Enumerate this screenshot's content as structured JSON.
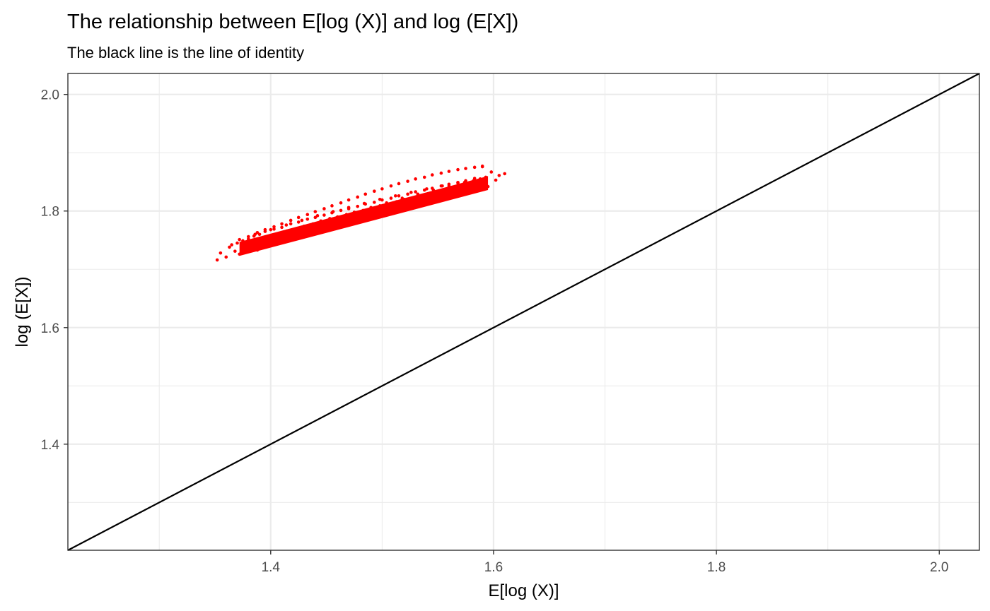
{
  "chart_data": {
    "type": "scatter",
    "title": "The relationship between E[log (X)] and log (E[X])",
    "subtitle": "The black line is the line of identity",
    "xlabel": "E[log (X)]",
    "ylabel": "log (E[X])",
    "xlim": [
      1.218,
      2.036
    ],
    "ylim": [
      1.218,
      2.036
    ],
    "x_ticks": [
      1.4,
      1.6,
      1.8,
      2.0
    ],
    "x_tick_labels": [
      "1.4",
      "1.6",
      "1.8",
      "2.0"
    ],
    "y_ticks": [
      1.4,
      1.6,
      1.8,
      2.0
    ],
    "y_tick_labels": [
      "1.4",
      "1.6",
      "1.8",
      "2.0"
    ],
    "grid": true,
    "legend": "none",
    "series": [
      {
        "kind": "points",
        "color": "#ff0000",
        "x": [
          1.352,
          1.355,
          1.36,
          1.363,
          1.368,
          1.37,
          1.372,
          1.375,
          1.378,
          1.38,
          1.382,
          1.385,
          1.388,
          1.39,
          1.393,
          1.395,
          1.398,
          1.4,
          1.403,
          1.405,
          1.408,
          1.41,
          1.413,
          1.415,
          1.418,
          1.42,
          1.423,
          1.425,
          1.428,
          1.43,
          1.433,
          1.435,
          1.438,
          1.44,
          1.443,
          1.445,
          1.448,
          1.45,
          1.453,
          1.455,
          1.458,
          1.46,
          1.463,
          1.465,
          1.468,
          1.47,
          1.473,
          1.475,
          1.478,
          1.48,
          1.483,
          1.485,
          1.488,
          1.49,
          1.493,
          1.495,
          1.498,
          1.5,
          1.503,
          1.505,
          1.508,
          1.51,
          1.513,
          1.515,
          1.518,
          1.52,
          1.523,
          1.525,
          1.528,
          1.53,
          1.533,
          1.535,
          1.538,
          1.54,
          1.543,
          1.545,
          1.548,
          1.55,
          1.553,
          1.555,
          1.558,
          1.56,
          1.563,
          1.565,
          1.568,
          1.57,
          1.573,
          1.575,
          1.578,
          1.58,
          1.583,
          1.585,
          1.588,
          1.59,
          1.593,
          1.595,
          1.598,
          1.602,
          1.605,
          1.61,
          1.365,
          1.372,
          1.38,
          1.388,
          1.395,
          1.403,
          1.41,
          1.418,
          1.425,
          1.433,
          1.44,
          1.448,
          1.455,
          1.463,
          1.47,
          1.478,
          1.485,
          1.493,
          1.5,
          1.508,
          1.515,
          1.523,
          1.53,
          1.538,
          1.545,
          1.553,
          1.56,
          1.568,
          1.575,
          1.583,
          1.59,
          1.378,
          1.392,
          1.406,
          1.42,
          1.434,
          1.448,
          1.462,
          1.476,
          1.49,
          1.504,
          1.518,
          1.532,
          1.546,
          1.56,
          1.574,
          1.588,
          1.386,
          1.4,
          1.414,
          1.428,
          1.442,
          1.456,
          1.47,
          1.484,
          1.498,
          1.512,
          1.526,
          1.54,
          1.554,
          1.568,
          1.582
        ],
        "y": [
          1.716,
          1.728,
          1.721,
          1.738,
          1.731,
          1.745,
          1.726,
          1.749,
          1.737,
          1.752,
          1.741,
          1.757,
          1.733,
          1.76,
          1.748,
          1.765,
          1.74,
          1.757,
          1.769,
          1.746,
          1.761,
          1.772,
          1.75,
          1.766,
          1.778,
          1.756,
          1.77,
          1.781,
          1.759,
          1.774,
          1.786,
          1.762,
          1.778,
          1.789,
          1.767,
          1.783,
          1.793,
          1.771,
          1.787,
          1.797,
          1.776,
          1.79,
          1.801,
          1.78,
          1.794,
          1.804,
          1.784,
          1.798,
          1.808,
          1.788,
          1.801,
          1.812,
          1.791,
          1.805,
          1.815,
          1.795,
          1.809,
          1.819,
          1.799,
          1.812,
          1.822,
          1.803,
          1.816,
          1.826,
          1.806,
          1.82,
          1.829,
          1.81,
          1.823,
          1.833,
          1.814,
          1.826,
          1.836,
          1.818,
          1.83,
          1.839,
          1.822,
          1.833,
          1.843,
          1.825,
          1.837,
          1.846,
          1.829,
          1.84,
          1.849,
          1.832,
          1.844,
          1.852,
          1.836,
          1.847,
          1.856,
          1.839,
          1.85,
          1.876,
          1.858,
          1.842,
          1.867,
          1.853,
          1.861,
          1.864,
          1.742,
          1.751,
          1.756,
          1.763,
          1.768,
          1.773,
          1.778,
          1.784,
          1.789,
          1.794,
          1.799,
          1.804,
          1.809,
          1.814,
          1.819,
          1.824,
          1.829,
          1.834,
          1.838,
          1.843,
          1.847,
          1.851,
          1.855,
          1.858,
          1.862,
          1.865,
          1.868,
          1.871,
          1.873,
          1.875,
          1.877,
          1.735,
          1.744,
          1.753,
          1.762,
          1.771,
          1.78,
          1.789,
          1.797,
          1.806,
          1.814,
          1.822,
          1.829,
          1.836,
          1.843,
          1.849,
          1.855,
          1.76,
          1.768,
          1.776,
          1.784,
          1.792,
          1.799,
          1.806,
          1.813,
          1.82,
          1.826,
          1.832,
          1.838,
          1.843,
          1.848,
          1.852
        ]
      },
      {
        "kind": "identity-line",
        "color": "#000000",
        "x": [
          1.218,
          2.036
        ],
        "y": [
          1.218,
          2.036
        ]
      }
    ]
  }
}
